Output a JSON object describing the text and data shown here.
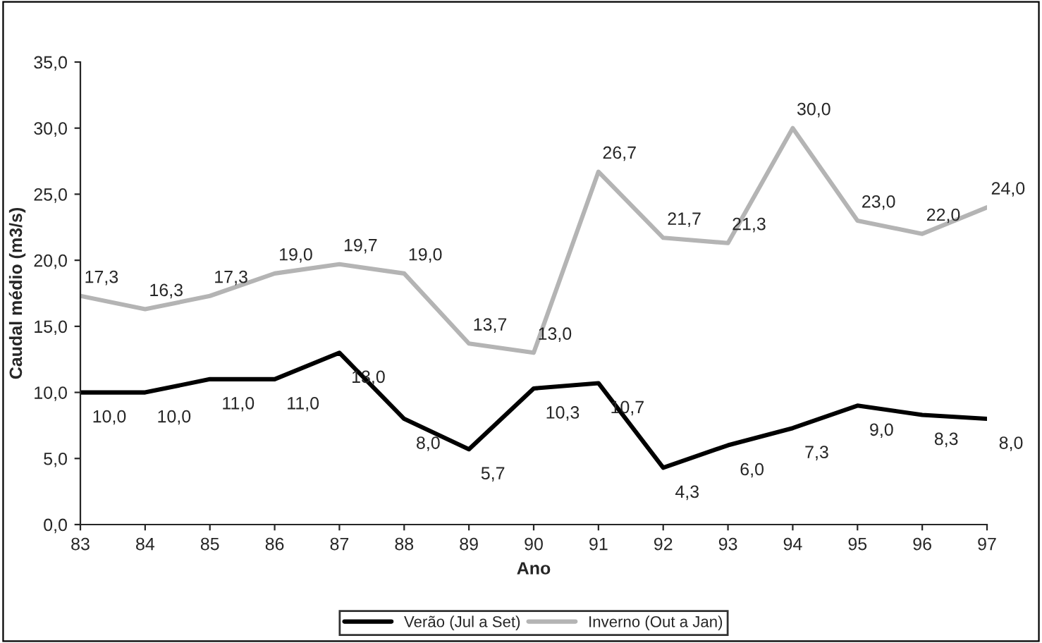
{
  "chart_data": {
    "type": "line",
    "xlabel": "Ano",
    "ylabel": "Caudal médio (m3/s)",
    "categories": [
      "83",
      "84",
      "85",
      "86",
      "87",
      "88",
      "89",
      "90",
      "91",
      "92",
      "93",
      "94",
      "95",
      "96",
      "97"
    ],
    "series": [
      {
        "name": "Verão (Jul a Set)",
        "color": "#000000",
        "values": [
          10.0,
          10.0,
          11.0,
          11.0,
          13.0,
          8.0,
          5.7,
          10.3,
          10.7,
          4.3,
          6.0,
          7.3,
          9.0,
          8.3,
          8.0
        ],
        "value_labels": [
          "10,0",
          "10,0",
          "11,0",
          "11,0",
          "13,0",
          "8,0",
          "5,7",
          "10,3",
          "10,7",
          "4,3",
          "6,0",
          "7,3",
          "9,0",
          "8,3",
          "8,0"
        ]
      },
      {
        "name": "Inverno (Out a Jan)",
        "color": "#b4b4b4",
        "values": [
          17.3,
          16.3,
          17.3,
          19.0,
          19.7,
          19.0,
          13.7,
          13.0,
          26.7,
          21.7,
          21.3,
          30.0,
          23.0,
          22.0,
          24.0
        ],
        "value_labels": [
          "17,3",
          "16,3",
          "17,3",
          "19,0",
          "19,7",
          "19,0",
          "13,7",
          "13,0",
          "26,7",
          "21,7",
          "21,3",
          "30,0",
          "23,0",
          "22,0",
          "24,0"
        ]
      }
    ],
    "ylim": [
      0,
      35
    ],
    "yticks": [
      {
        "value": 0,
        "label": "0,0"
      },
      {
        "value": 5,
        "label": "5,0"
      },
      {
        "value": 10,
        "label": "10,0"
      },
      {
        "value": 15,
        "label": "15,0"
      },
      {
        "value": 20,
        "label": "20,0"
      },
      {
        "value": 25,
        "label": "25,0"
      },
      {
        "value": 30,
        "label": "30,0"
      },
      {
        "value": 35,
        "label": "35,0"
      }
    ],
    "grid": false,
    "legend": "bottom",
    "marker": "none",
    "line_style": "solid"
  }
}
